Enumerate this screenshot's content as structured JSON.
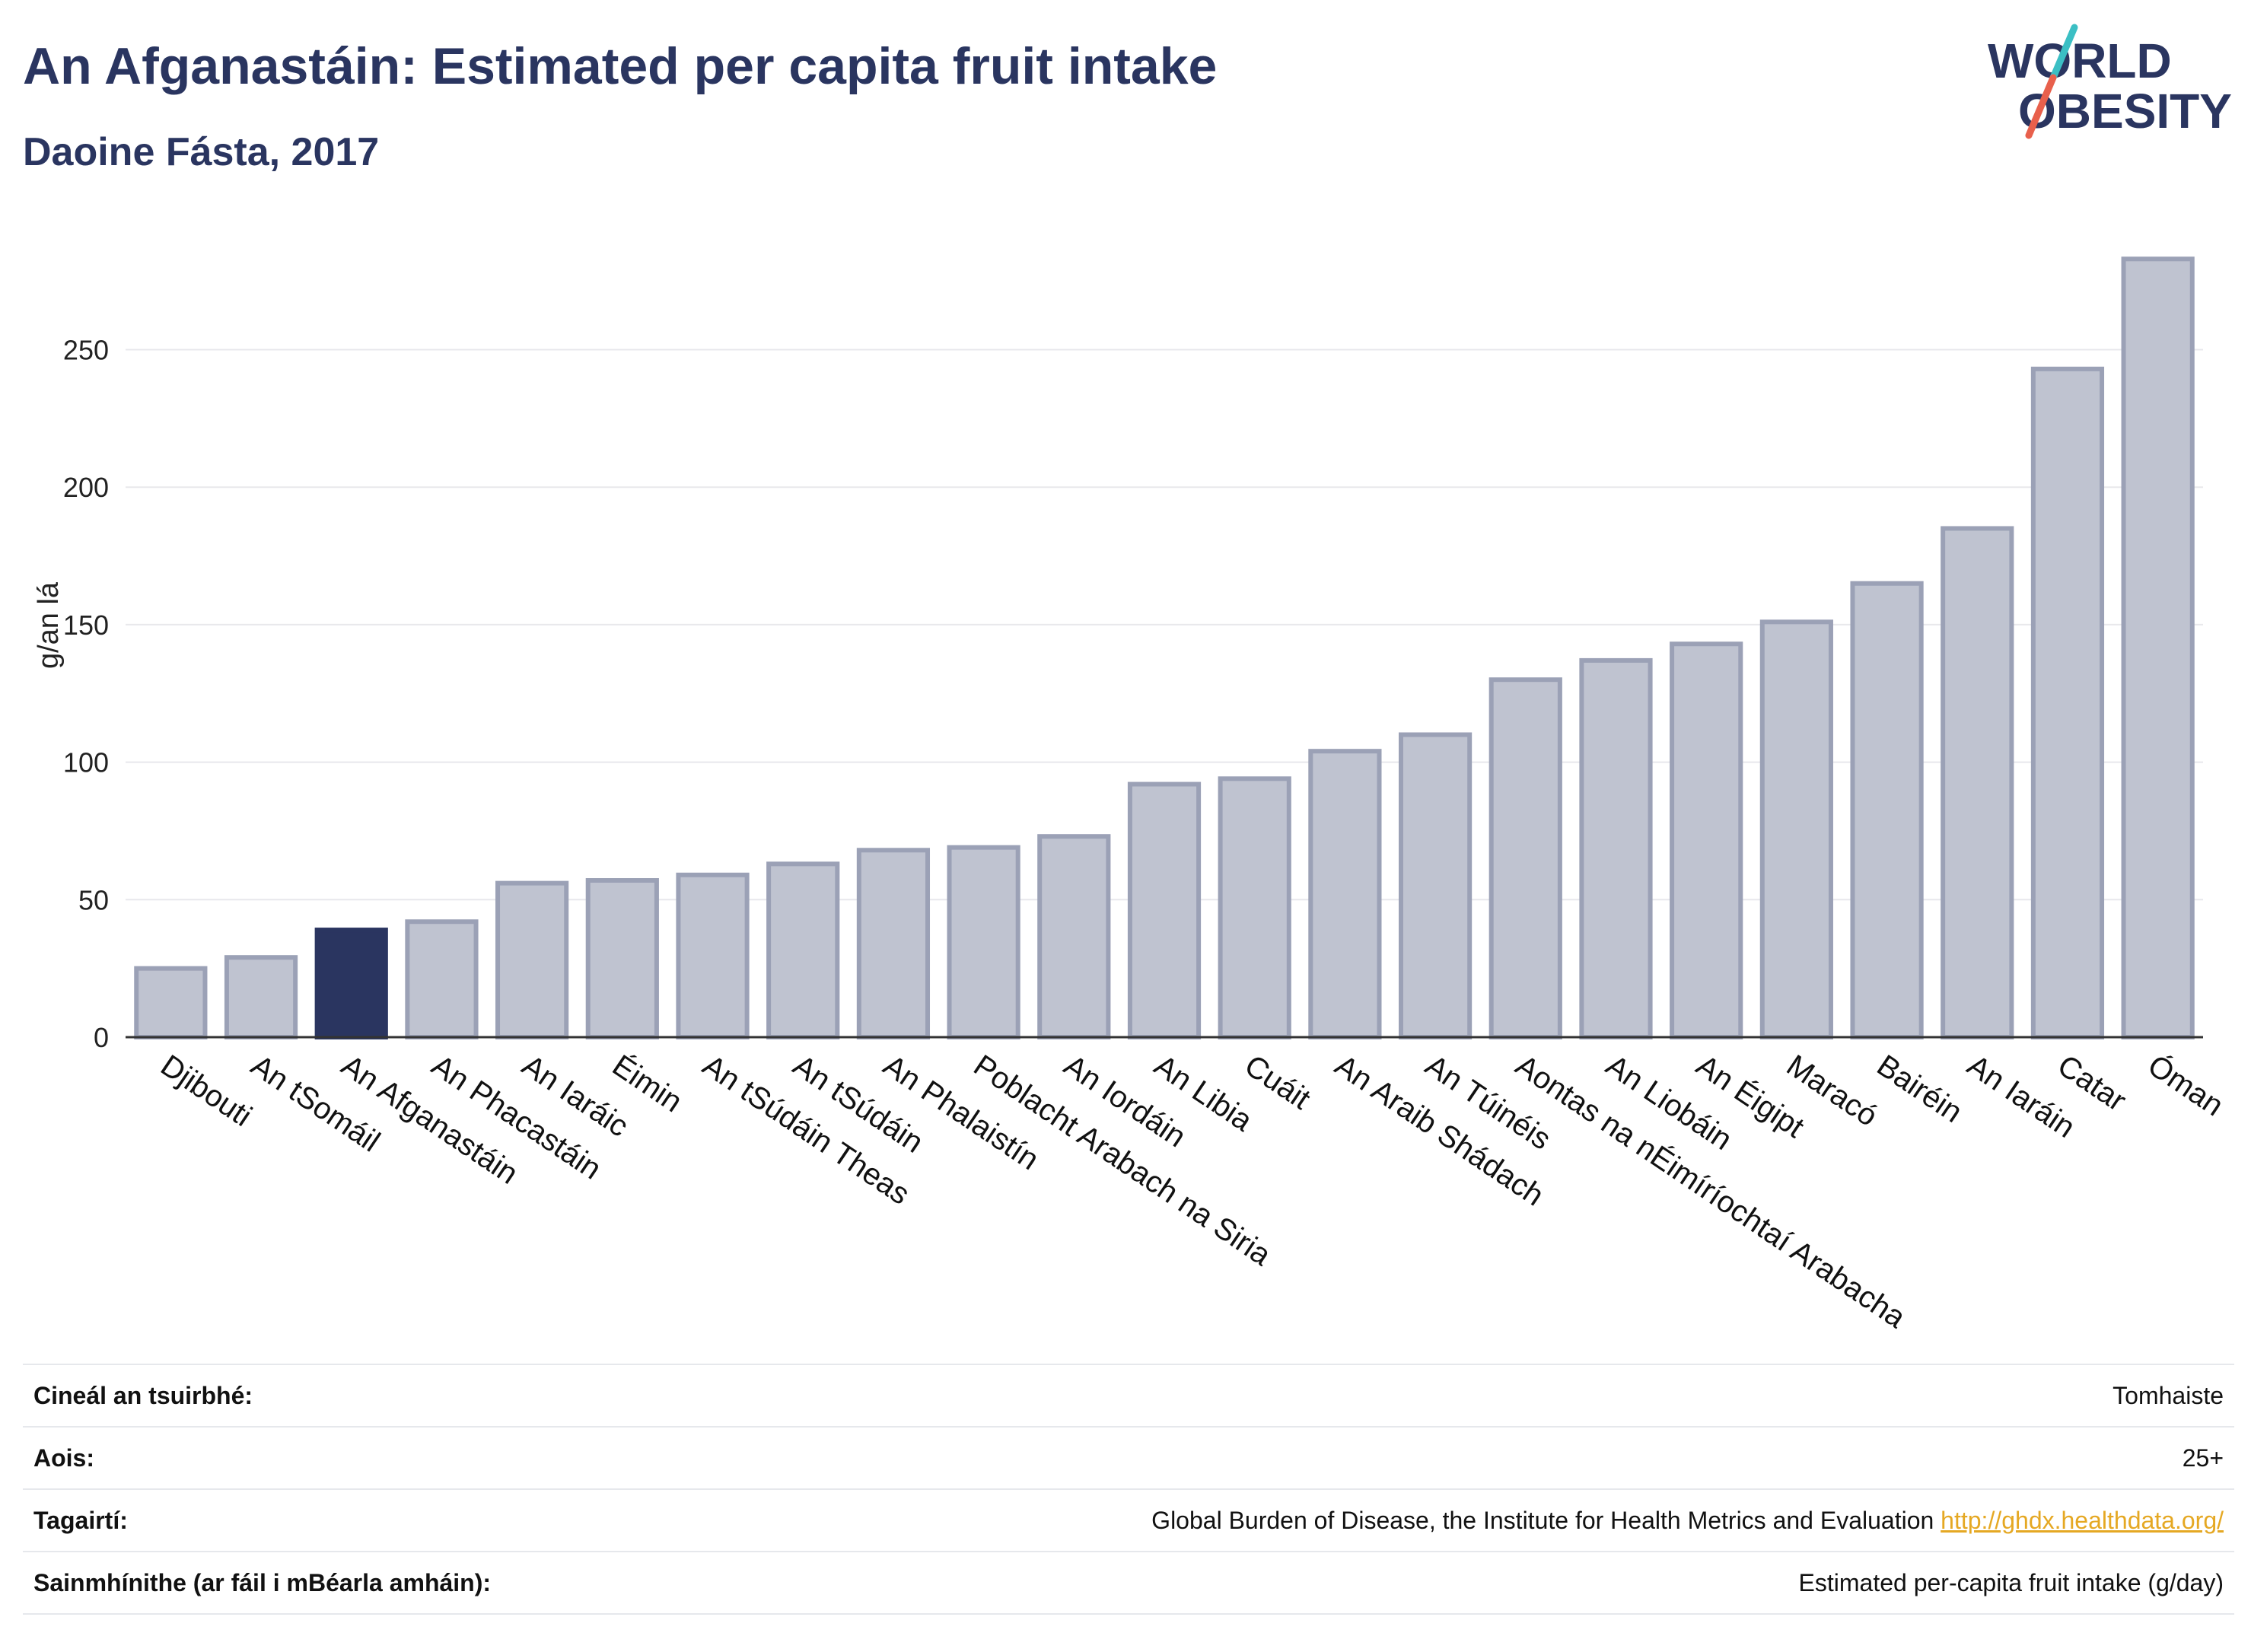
{
  "header": {
    "title": "An Afganastáin: Estimated per capita fruit intake",
    "subtitle": "Daoine Fásta, 2017"
  },
  "logo": {
    "line1": "WORLD",
    "line2": "OBESITY",
    "colors": {
      "text": "#2a3560",
      "slash_teal": "#3bbfc4",
      "slash_red": "#e8604c"
    }
  },
  "chart_data": {
    "type": "bar",
    "categories": [
      "Djibouti",
      "An tSomáil",
      "An Afganastáin",
      "An Phacastáin",
      "An Iaráic",
      "Éimin",
      "An tSúdáin Theas",
      "An tSúdáin",
      "An Phalaistín",
      "Poblacht Arabach na Siria",
      "An Iordáin",
      "An Libia",
      "Cuáit",
      "An Araib Shádach",
      "An Túinéis",
      "Aontas na nÉimíríochtaí Arabacha",
      "An Liobáin",
      "An Éigipt",
      "Maracó",
      "Bairéin",
      "An Iaráin",
      "Catar",
      "Óman"
    ],
    "values": [
      25,
      29,
      39,
      42,
      56,
      57,
      59,
      63,
      68,
      69,
      73,
      92,
      94,
      104,
      110,
      130,
      137,
      143,
      151,
      165,
      185,
      243,
      283
    ],
    "highlight": "An Afganastáin",
    "ylabel": "g/an lá",
    "ylim": [
      0,
      290
    ],
    "yticks": [
      0,
      50,
      100,
      150,
      200,
      250
    ],
    "grid": true,
    "colors": {
      "bar": "#bfc3d0",
      "bar_edge": "#9ba1b6",
      "highlight": "#2a3560",
      "grid": "#e8e8ec",
      "axis": "#333333"
    }
  },
  "info": {
    "rows": [
      {
        "key": "Cineál an tsuirbhé:",
        "value": "Tomhaiste"
      },
      {
        "key": "Aois:",
        "value": "25+"
      },
      {
        "key": "Tagairtí:",
        "value": "Global Burden of Disease, the Institute for Health Metrics and Evaluation",
        "link": "http://ghdx.healthdata.org/"
      },
      {
        "key": "Sainmhínithe (ar fáil i mBéarla amháin):",
        "value": "Estimated per-capita fruit intake (g/day)"
      }
    ]
  }
}
